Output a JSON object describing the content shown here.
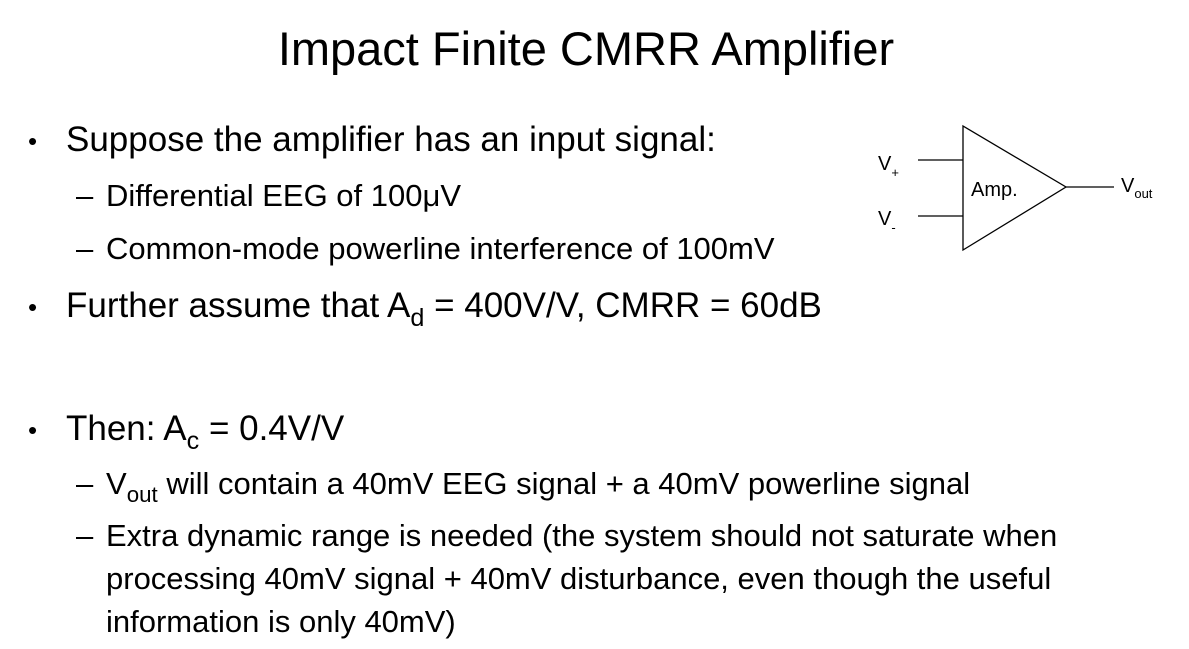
{
  "slide": {
    "title": "Impact Finite CMRR Amplifier",
    "bullet_char": "•",
    "dash_char": "–",
    "b1": {
      "text": "Suppose the amplifier has an input signal:"
    },
    "b1a": {
      "text": "Differential EEG of 100μV"
    },
    "b1b": {
      "text": "Common-mode powerline interference of 100mV"
    },
    "b2": {
      "pre": "Further assume that A",
      "sub": "d",
      "post": " = 400V/V, CMRR = 60dB"
    },
    "b3": {
      "pre": "Then: A",
      "sub": "c",
      "post": " = 0.4V/V"
    },
    "b3a": {
      "pre": "V",
      "sub": "out",
      "post": " will contain a 40mV EEG signal + a 40mV powerline signal"
    },
    "b3b": {
      "line1": "Extra dynamic range is needed (the system should not saturate when",
      "line2": "processing 40mV signal + 40mV disturbance, even though the useful",
      "line3": "information is only 40mV)"
    }
  },
  "diagram": {
    "amp_label": "Amp.",
    "vplus_main": "V",
    "vplus_sub": "+",
    "vminus_main": "V",
    "vminus_sub": "-",
    "vout_main": "V",
    "vout_sub": "out"
  }
}
